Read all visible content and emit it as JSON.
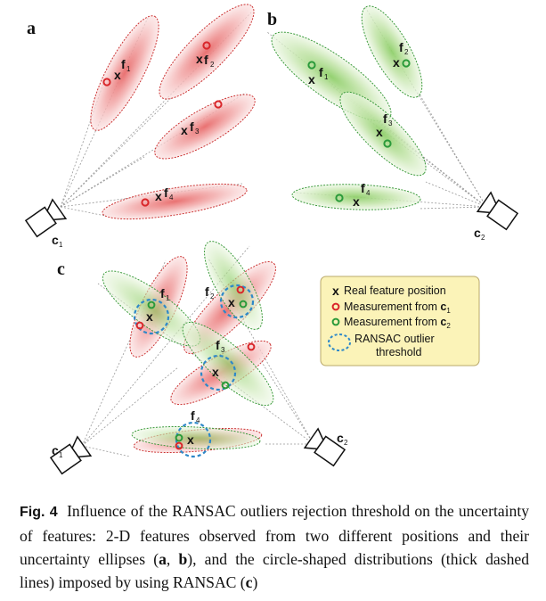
{
  "panels": {
    "a": "a",
    "b": "b",
    "c": "c"
  },
  "cameras": {
    "c1": "c",
    "c1_sub": "1",
    "c2": "c",
    "c2_sub": "2"
  },
  "features": {
    "f": "f",
    "subs": [
      "1",
      "2",
      "3",
      "4"
    ]
  },
  "legend": {
    "real": "Real feature position",
    "meas_prefix": "Measurement from ",
    "meas_c1_letter": "c",
    "meas_c1_sub": "1",
    "meas_c2_letter": "c",
    "meas_c2_sub": "2",
    "ransac_line1": "RANSAC outlier",
    "ransac_line2": "threshold"
  },
  "cross_glyph": "x",
  "colors": {
    "ellipse_red_fill": "#f3b3b3",
    "ellipse_red_stroke": "#cc3333",
    "ellipse_green_fill": "#c9e6b4",
    "ellipse_green_stroke": "#3a9a3a",
    "meas_red": "#d9262a",
    "meas_green": "#2a9a3a",
    "ransac_blue": "#2e88c8",
    "legend_fill": "#fbf3b8",
    "legend_stroke": "#b9a86a"
  },
  "caption": {
    "label": "Fig. 4",
    "text_1": "Influence of the RANSAC outliers rejection threshold on the uncertainty of features: 2-D features observed from two different positions and their uncertainty ellipses (",
    "a": "a",
    "sep": ", ",
    "b": "b",
    "text_2": "), and the circle-shaped distributions (thick dashed lines) imposed by using RANSAC (",
    "c": "c",
    "text_3": ")"
  }
}
